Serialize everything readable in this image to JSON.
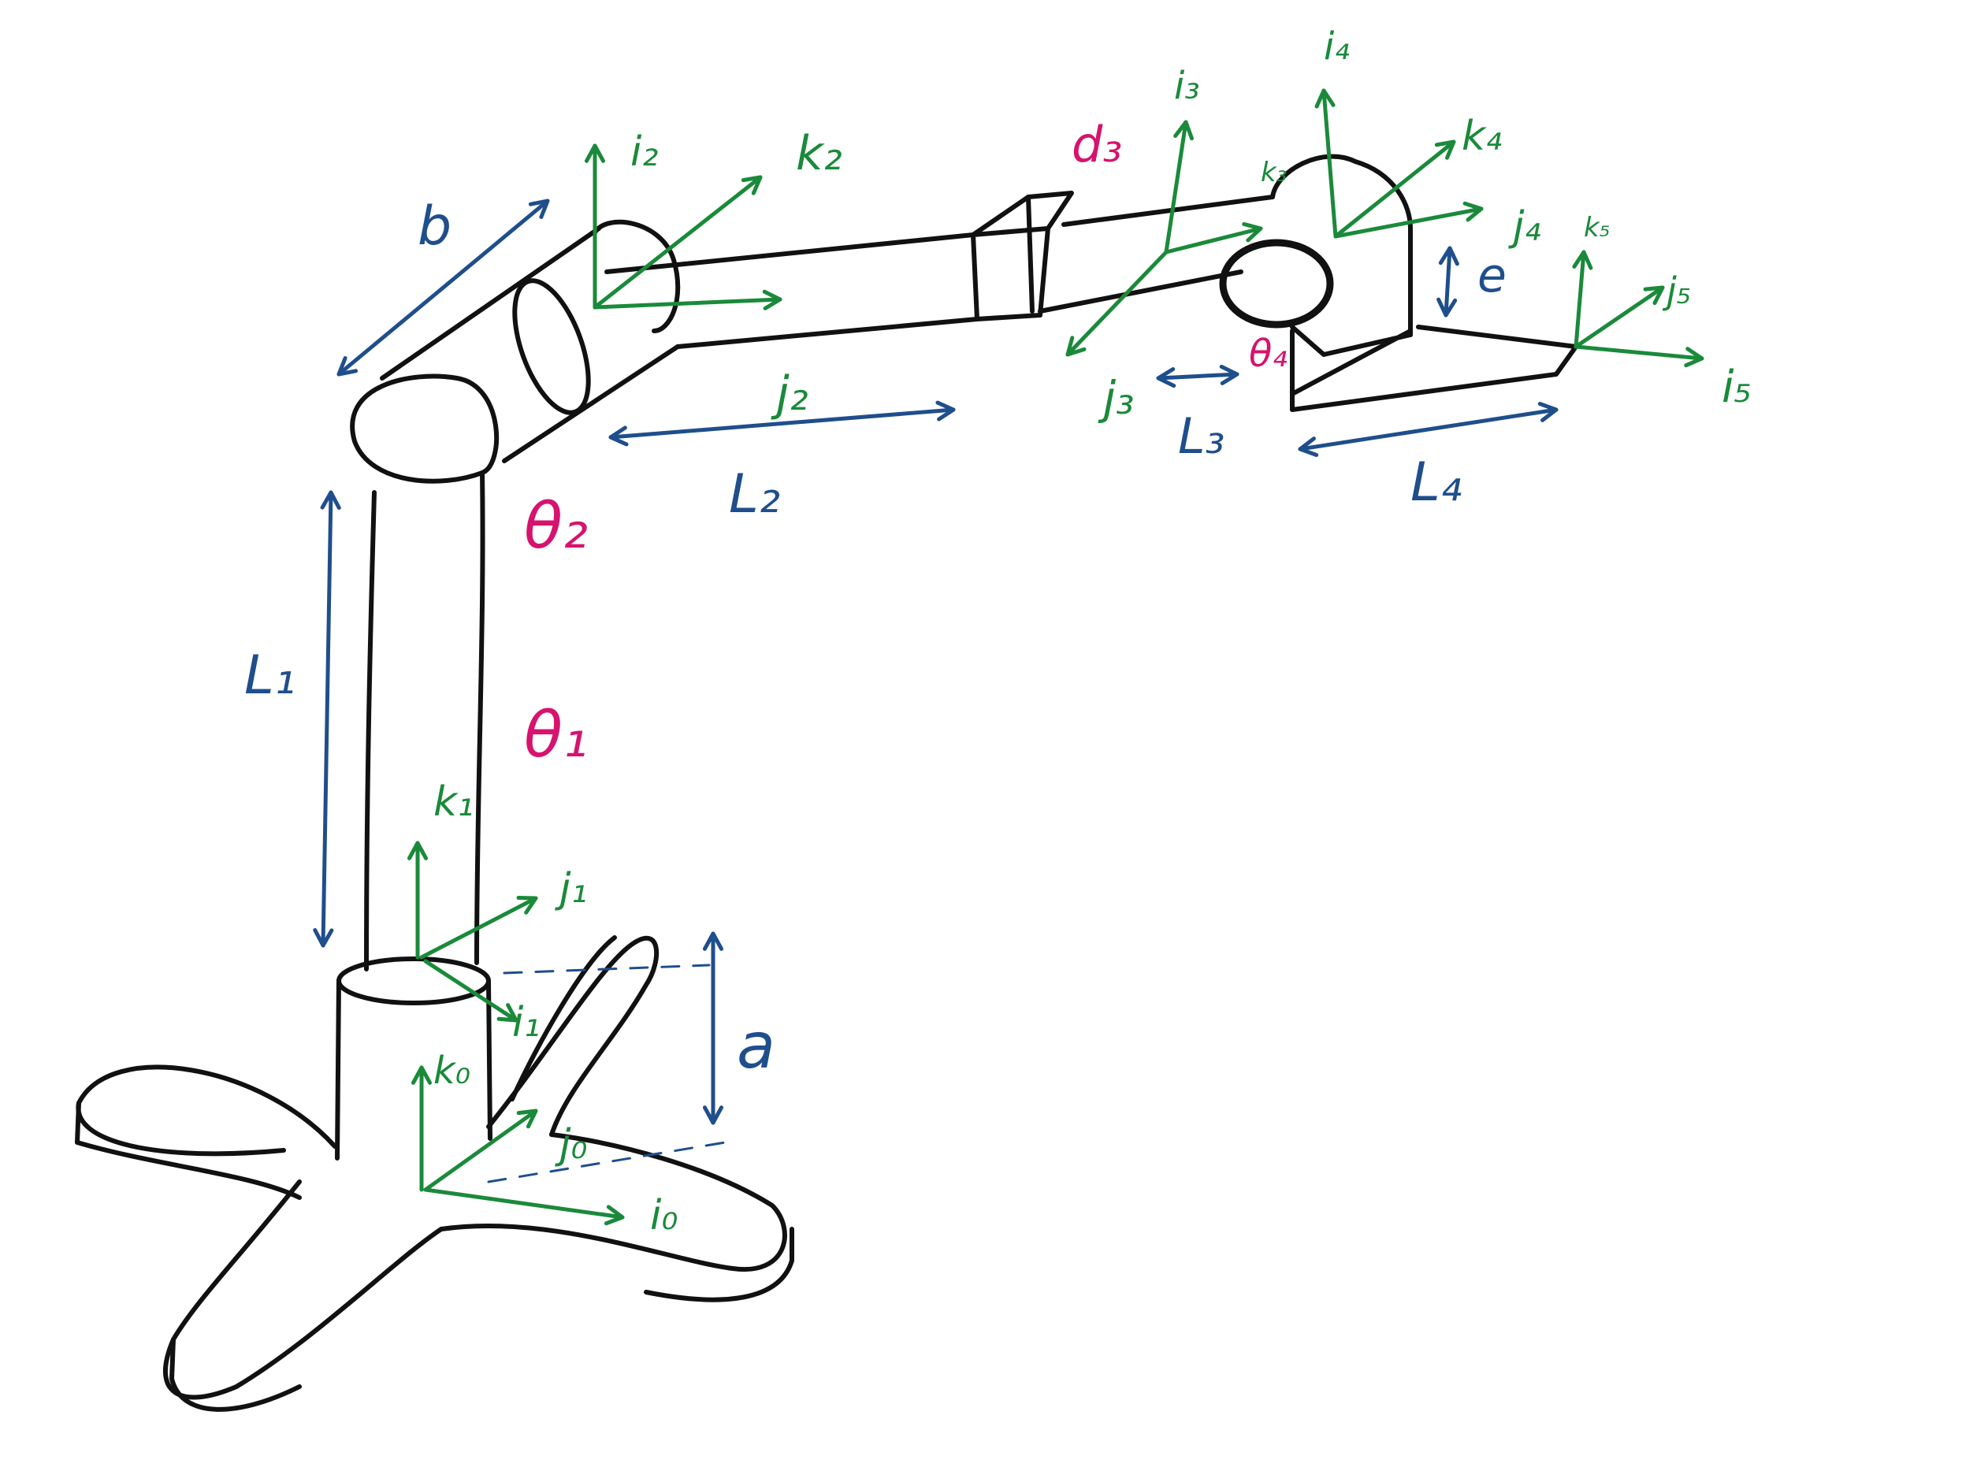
{
  "colors": {
    "outline": "#111111",
    "frame": "#1a8a3a",
    "dimension": "#1f4e8c",
    "joint": "#d6136e"
  },
  "labels": {
    "frame0": {
      "i": "i₀",
      "j": "j₀",
      "k": "k₀"
    },
    "frame1": {
      "i": "i₁",
      "j": "j₁",
      "k": "k₁"
    },
    "frame2": {
      "i": "i₂",
      "j": "j₂",
      "k": "k₂"
    },
    "frame3": {
      "i": "i₃",
      "j": "j₃",
      "k": "k₃"
    },
    "frame4": {
      "i": "i₄",
      "j": "j₄",
      "k": "k₄"
    },
    "frame5": {
      "i": "i₅",
      "j": "j₅",
      "k": "k₅"
    },
    "joints": {
      "theta1": "θ₁",
      "theta2": "θ₂",
      "d3": "d₃",
      "theta4": "θ₄"
    },
    "dimensions": {
      "a": "a",
      "L1": "L₁",
      "b": "b",
      "L2": "L₂",
      "L3": "L₃",
      "L4": "L₄",
      "e": "e"
    }
  }
}
